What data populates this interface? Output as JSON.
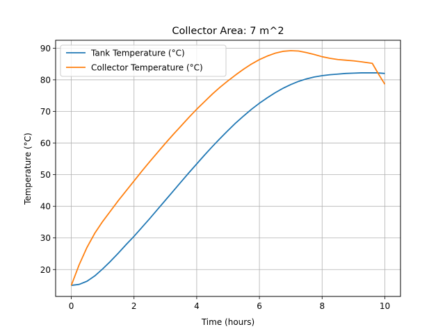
{
  "chart_data": {
    "type": "line",
    "title": "Collector Area: 7 m^2",
    "xlabel": "Time (hours)",
    "ylabel": "Temperature (°C)",
    "xlim": [
      -0.5,
      10.5
    ],
    "ylim": [
      11.5,
      92.5
    ],
    "xticks": [
      0,
      2,
      4,
      6,
      8,
      10
    ],
    "yticks": [
      20,
      30,
      40,
      50,
      60,
      70,
      80,
      90
    ],
    "grid": true,
    "legend_position": "upper-left",
    "series": [
      {
        "name": "Tank Temperature (°C)",
        "color": "#1f77b4",
        "x": [
          0,
          0.25,
          0.5,
          0.75,
          1,
          1.25,
          1.5,
          1.75,
          2,
          2.25,
          2.5,
          2.75,
          3,
          3.25,
          3.5,
          3.75,
          4,
          4.25,
          4.5,
          4.75,
          5,
          5.25,
          5.5,
          5.75,
          6,
          6.25,
          6.5,
          6.75,
          7,
          7.25,
          7.5,
          7.75,
          8,
          8.25,
          8.5,
          8.75,
          9,
          9.25,
          9.5,
          9.75,
          10
        ],
        "y": [
          15,
          15.3,
          16.3,
          18.0,
          20.2,
          22.6,
          25.2,
          27.9,
          30.5,
          33.3,
          36.1,
          39.0,
          41.9,
          44.8,
          47.7,
          50.6,
          53.4,
          56.2,
          58.9,
          61.5,
          64.0,
          66.4,
          68.6,
          70.7,
          72.6,
          74.3,
          75.9,
          77.3,
          78.5,
          79.5,
          80.3,
          80.9,
          81.3,
          81.6,
          81.8,
          82.0,
          82.1,
          82.2,
          82.2,
          82.2,
          82.0
        ]
      },
      {
        "name": "Collector Temperature (°C)",
        "color": "#ff7f0e",
        "x": [
          0,
          0.25,
          0.5,
          0.75,
          1,
          1.25,
          1.5,
          1.75,
          2,
          2.25,
          2.5,
          2.75,
          3,
          3.25,
          3.5,
          3.75,
          4,
          4.25,
          4.5,
          4.75,
          5,
          5.25,
          5.5,
          5.75,
          6,
          6.25,
          6.5,
          6.75,
          7,
          7.25,
          7.5,
          7.75,
          8,
          8.25,
          8.5,
          8.75,
          9,
          9.25,
          9.6,
          9.8,
          10
        ],
        "y": [
          15,
          21.5,
          27.0,
          31.5,
          35.2,
          38.5,
          41.8,
          44.9,
          48.0,
          51.1,
          54.1,
          57.0,
          59.9,
          62.7,
          65.4,
          68.1,
          70.7,
          73.1,
          75.5,
          77.7,
          79.7,
          81.6,
          83.4,
          85.0,
          86.4,
          87.5,
          88.4,
          89.0,
          89.2,
          89.1,
          88.6,
          88.0,
          87.3,
          86.8,
          86.4,
          86.2,
          86.0,
          85.7,
          85.2,
          81.8,
          78.6
        ]
      }
    ]
  }
}
